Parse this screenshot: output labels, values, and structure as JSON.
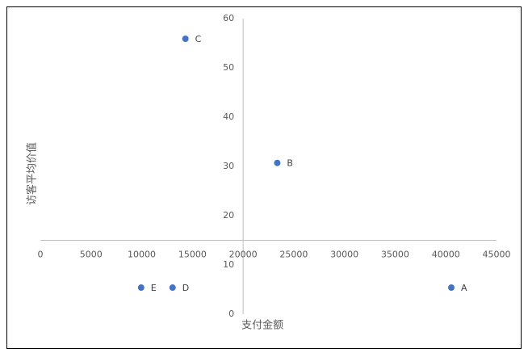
{
  "chart_data": {
    "type": "scatter",
    "xlabel": "支付金额",
    "ylabel": "访客平均价值",
    "labels": [
      "A",
      "B",
      "C",
      "D",
      "E"
    ],
    "x": [
      40540,
      23370,
      14310,
      13040,
      9940
    ],
    "y": [
      5.4,
      30.7,
      55.9,
      5.4,
      5.4
    ],
    "color": "#4472c4",
    "xlim": [
      0,
      45000
    ],
    "ylim": [
      0,
      60
    ],
    "xticks": [
      0,
      5000,
      10000,
      15000,
      20000,
      25000,
      30000,
      35000,
      40000,
      45000
    ],
    "yticks": [
      0,
      10,
      20,
      30,
      40,
      50,
      60
    ],
    "x_axis_at_y": 15,
    "y_axis_at_x": 20000
  }
}
